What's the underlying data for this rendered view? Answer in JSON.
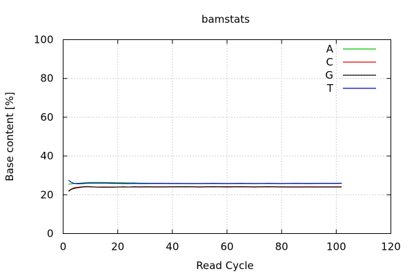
{
  "chart_data": {
    "type": "line",
    "title": "bamstats",
    "xlabel": "Read Cycle",
    "ylabel": "Base content [%]",
    "xlim": [
      0,
      120
    ],
    "ylim": [
      0,
      100
    ],
    "xticks": [
      "0",
      "20",
      "40",
      "60",
      "80",
      "100",
      "120"
    ],
    "yticks": [
      "0",
      "20",
      "40",
      "60",
      "80",
      "100"
    ],
    "grid": true,
    "legend_position": "top-right",
    "x": [
      2,
      3,
      4,
      5,
      6,
      7,
      8,
      9,
      10,
      12,
      14,
      16,
      18,
      20,
      22,
      24,
      26,
      28,
      30,
      35,
      40,
      45,
      50,
      55,
      60,
      65,
      70,
      75,
      80,
      85,
      90,
      95,
      102
    ],
    "series": [
      {
        "name": "A",
        "color": "#00c000",
        "values": [
          25.5,
          25.6,
          25.8,
          25.9,
          26.0,
          26.1,
          26.2,
          26.3,
          26.4,
          26.4,
          26.4,
          26.3,
          26.3,
          26.2,
          26.2,
          26.1,
          26.1,
          26.0,
          26.0,
          25.9,
          25.9,
          25.8,
          25.8,
          25.8,
          25.8,
          25.8,
          25.8,
          25.8,
          25.8,
          25.9,
          25.9,
          25.9,
          26.0
        ]
      },
      {
        "name": "C",
        "color": "#e00000",
        "values": [
          22.0,
          23.0,
          23.6,
          23.8,
          24.0,
          24.1,
          24.2,
          24.2,
          24.1,
          24.0,
          23.9,
          23.9,
          23.9,
          24.0,
          24.0,
          24.0,
          24.1,
          24.1,
          24.1,
          24.1,
          24.1,
          24.1,
          24.1,
          24.1,
          24.2,
          24.1,
          24.1,
          24.1,
          24.1,
          24.1,
          24.1,
          24.1,
          24.1
        ]
      },
      {
        "name": "G",
        "color": "#000000",
        "values": [
          21.8,
          22.8,
          23.3,
          23.6,
          23.8,
          24.0,
          24.1,
          24.2,
          24.1,
          24.0,
          24.0,
          24.0,
          24.0,
          24.0,
          24.1,
          24.0,
          24.1,
          24.0,
          24.1,
          24.0,
          24.1,
          24.2,
          24.0,
          24.2,
          24.0,
          24.2,
          24.0,
          24.2,
          24.0,
          24.0,
          24.0,
          24.0,
          24.0
        ]
      },
      {
        "name": "T",
        "color": "#0000c0",
        "values": [
          27.5,
          26.4,
          25.9,
          25.7,
          25.7,
          25.8,
          25.9,
          26.0,
          26.0,
          26.0,
          26.0,
          26.0,
          25.9,
          25.9,
          25.8,
          25.8,
          25.9,
          25.8,
          25.8,
          25.9,
          25.8,
          25.8,
          25.8,
          25.9,
          25.8,
          25.9,
          25.8,
          25.9,
          25.8,
          25.9,
          25.8,
          25.9,
          25.9
        ]
      }
    ]
  }
}
